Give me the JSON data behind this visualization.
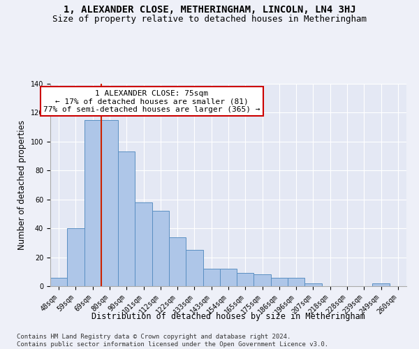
{
  "title": "1, ALEXANDER CLOSE, METHERINGHAM, LINCOLN, LN4 3HJ",
  "subtitle": "Size of property relative to detached houses in Metheringham",
  "xlabel": "Distribution of detached houses by size in Metheringham",
  "ylabel": "Number of detached properties",
  "categories": [
    "48sqm",
    "59sqm",
    "69sqm",
    "80sqm",
    "90sqm",
    "101sqm",
    "112sqm",
    "122sqm",
    "133sqm",
    "143sqm",
    "154sqm",
    "165sqm",
    "175sqm",
    "186sqm",
    "196sqm",
    "207sqm",
    "218sqm",
    "228sqm",
    "239sqm",
    "249sqm",
    "260sqm"
  ],
  "values": [
    6,
    40,
    115,
    115,
    93,
    58,
    52,
    34,
    25,
    12,
    12,
    9,
    8,
    6,
    6,
    2,
    0,
    0,
    0,
    2,
    0
  ],
  "bar_color": "#aec6e8",
  "bar_edge_color": "#5a8fc2",
  "redline_x": 2.5,
  "annotation_line1": "1 ALEXANDER CLOSE: 75sqm",
  "annotation_line2": "← 17% of detached houses are smaller (81)",
  "annotation_line3": "77% of semi-detached houses are larger (365) →",
  "ylim": [
    0,
    140
  ],
  "yticks": [
    0,
    20,
    40,
    60,
    80,
    100,
    120,
    140
  ],
  "background_color": "#eef0f8",
  "plot_bg_color": "#e4e8f4",
  "grid_color": "#ffffff",
  "annotation_box_color": "#ffffff",
  "annotation_box_edge": "#cc0000",
  "footer": "Contains HM Land Registry data © Crown copyright and database right 2024.\nContains public sector information licensed under the Open Government Licence v3.0.",
  "title_fontsize": 10,
  "subtitle_fontsize": 9,
  "xlabel_fontsize": 8.5,
  "ylabel_fontsize": 8.5,
  "tick_fontsize": 7,
  "annotation_fontsize": 8,
  "footer_fontsize": 6.5
}
